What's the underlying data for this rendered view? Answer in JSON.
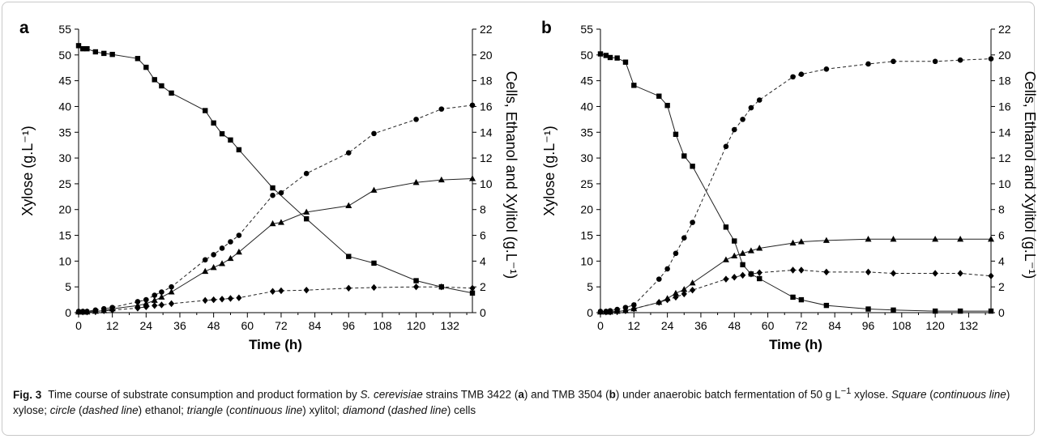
{
  "chart_data": [
    {
      "type": "line",
      "panel_label": "a",
      "xlabel": "Time (h)",
      "ylabel": "Xylose (g.L⁻¹)",
      "y2label": "Cells, Ethanol and Xylitol (g.L⁻¹)",
      "xlim": [
        0,
        140
      ],
      "xticks": [
        0,
        12,
        24,
        36,
        48,
        60,
        72,
        84,
        96,
        108,
        120,
        132
      ],
      "ylim": [
        0,
        55
      ],
      "yticks": [
        0,
        5,
        10,
        15,
        20,
        25,
        30,
        35,
        40,
        45,
        50,
        55
      ],
      "y2lim": [
        0,
        22
      ],
      "y2ticks": [
        0,
        2,
        4,
        6,
        8,
        10,
        12,
        14,
        16,
        18,
        20,
        22
      ],
      "grid": false,
      "legend": "none",
      "series": [
        {
          "marker": "square",
          "line": "solid",
          "axis": "left",
          "x": [
            0,
            1.5,
            3,
            6,
            9,
            12,
            21,
            24,
            27,
            29.5,
            33,
            45,
            48,
            51,
            54,
            57,
            69,
            81,
            96,
            105,
            120,
            129,
            140
          ],
          "y": [
            51.8,
            51.2,
            51.2,
            50.6,
            50.3,
            50.1,
            49.3,
            47.6,
            45.2,
            44.0,
            42.6,
            39.2,
            36.8,
            34.7,
            33.5,
            31.6,
            24.2,
            18.2,
            10.9,
            9.6,
            6.2,
            5.0,
            3.8
          ]
        },
        {
          "marker": "circle",
          "line": "dashed",
          "axis": "right",
          "x": [
            0,
            1.5,
            3,
            6,
            9,
            12,
            21,
            24,
            27,
            29.5,
            33,
            45,
            48,
            51,
            54,
            57,
            69,
            72,
            81,
            96,
            105,
            120,
            129,
            140
          ],
          "y": [
            0.1,
            0.1,
            0.1,
            0.2,
            0.3,
            0.4,
            0.85,
            1.0,
            1.35,
            1.6,
            2.0,
            4.1,
            4.5,
            5.0,
            5.5,
            6.0,
            9.1,
            9.3,
            10.8,
            12.4,
            13.9,
            15.0,
            15.8,
            16.1
          ]
        },
        {
          "marker": "triangle",
          "line": "solid",
          "axis": "right",
          "x": [
            0,
            1.5,
            3,
            6,
            9,
            12,
            21,
            24,
            27,
            29.5,
            33,
            45,
            48,
            51,
            54,
            57,
            69,
            72,
            81,
            96,
            105,
            120,
            129,
            140
          ],
          "y": [
            0.05,
            0.05,
            0.05,
            0.1,
            0.15,
            0.3,
            0.55,
            0.7,
            0.95,
            1.2,
            1.6,
            3.2,
            3.5,
            3.8,
            4.2,
            4.7,
            6.9,
            7.0,
            7.8,
            8.3,
            9.5,
            10.1,
            10.3,
            10.4
          ]
        },
        {
          "marker": "diamond",
          "line": "dashed",
          "axis": "right",
          "x": [
            0,
            1.5,
            3,
            6,
            9,
            12,
            21,
            24,
            27,
            29.5,
            33,
            45,
            48,
            51,
            54,
            57,
            69,
            72,
            81,
            96,
            105,
            120,
            129,
            140
          ],
          "y": [
            0.05,
            0.05,
            0.05,
            0.1,
            0.15,
            0.2,
            0.35,
            0.45,
            0.55,
            0.6,
            0.7,
            0.95,
            1.0,
            1.05,
            1.1,
            1.15,
            1.65,
            1.7,
            1.75,
            1.9,
            1.95,
            2.0,
            2.0,
            1.9
          ]
        }
      ]
    },
    {
      "type": "line",
      "panel_label": "b",
      "xlabel": "Time (h)",
      "ylabel": "Xylose (g.L⁻¹)",
      "y2label": "Cells, Ethanol and Xylitol (g.L⁻¹)",
      "xlim": [
        0,
        140
      ],
      "xticks": [
        0,
        12,
        24,
        36,
        48,
        60,
        72,
        84,
        96,
        108,
        120,
        132
      ],
      "ylim": [
        0,
        55
      ],
      "yticks": [
        0,
        5,
        10,
        15,
        20,
        25,
        30,
        35,
        40,
        45,
        50,
        55
      ],
      "y2lim": [
        0,
        22
      ],
      "y2ticks": [
        0,
        2,
        4,
        6,
        8,
        10,
        12,
        14,
        16,
        18,
        20,
        22
      ],
      "grid": false,
      "legend": "none",
      "series": [
        {
          "marker": "square",
          "line": "solid",
          "axis": "left",
          "x": [
            0,
            2,
            3.5,
            6,
            9,
            12,
            21,
            24,
            27,
            30,
            33,
            45,
            48,
            51,
            54,
            57,
            69,
            72,
            81,
            96,
            105,
            120,
            129,
            140
          ],
          "y": [
            50.2,
            49.9,
            49.5,
            49.4,
            48.6,
            44.1,
            42.0,
            40.2,
            34.6,
            30.4,
            28.4,
            16.6,
            13.9,
            9.3,
            7.5,
            6.6,
            3.0,
            2.5,
            1.4,
            0.7,
            0.5,
            0.3,
            0.3,
            0.3
          ]
        },
        {
          "marker": "circle",
          "line": "dashed",
          "axis": "right",
          "x": [
            0,
            2,
            3.5,
            6,
            9,
            12,
            21,
            24,
            27,
            30,
            33,
            45,
            48,
            51,
            54,
            57,
            69,
            72,
            81,
            96,
            105,
            120,
            129,
            140
          ],
          "y": [
            0.1,
            0.1,
            0.15,
            0.25,
            0.4,
            0.6,
            2.6,
            3.4,
            4.6,
            5.8,
            7.0,
            12.9,
            14.2,
            15.0,
            15.9,
            16.5,
            18.3,
            18.5,
            18.9,
            19.3,
            19.5,
            19.5,
            19.6,
            19.7
          ]
        },
        {
          "marker": "triangle",
          "line": "solid",
          "axis": "right",
          "x": [
            0,
            2,
            3.5,
            6,
            9,
            12,
            21,
            24,
            27,
            30,
            33,
            45,
            48,
            51,
            54,
            57,
            69,
            72,
            81,
            96,
            105,
            120,
            129,
            140
          ],
          "y": [
            0.05,
            0.05,
            0.05,
            0.1,
            0.15,
            0.3,
            0.8,
            1.1,
            1.5,
            1.8,
            2.3,
            4.1,
            4.4,
            4.6,
            4.8,
            5.0,
            5.4,
            5.5,
            5.6,
            5.7,
            5.7,
            5.7,
            5.7,
            5.7
          ]
        },
        {
          "marker": "diamond",
          "line": "dashed",
          "axis": "right",
          "x": [
            0,
            2,
            3.5,
            6,
            9,
            12,
            21,
            24,
            27,
            30,
            33,
            45,
            48,
            51,
            54,
            57,
            69,
            72,
            81,
            96,
            105,
            120,
            129,
            140
          ],
          "y": [
            0.05,
            0.05,
            0.05,
            0.1,
            0.15,
            0.3,
            0.8,
            1.0,
            1.2,
            1.45,
            1.75,
            2.6,
            2.75,
            2.9,
            3.0,
            3.1,
            3.3,
            3.3,
            3.15,
            3.15,
            3.05,
            3.05,
            3.05,
            2.85
          ]
        }
      ]
    }
  ],
  "caption": {
    "label": "Fig. 3",
    "text_before_species": "Time course of substrate consumption and product formation by ",
    "species": "S. cerevisiae",
    "text_strains_1": " strains TMB 3422 (",
    "panel_a": "a",
    "text_strains_2": ") and TMB 3504 (",
    "panel_b": "b",
    "text_strains_3": ") under anaerobic batch fermentation of 50 g L",
    "superscript": "−1",
    "text_after_superscript": " xylose. ",
    "legend_square": "Square",
    "legend_square_line": "continuous line",
    "legend_square_name": "xylose",
    "legend_circle": "circle",
    "legend_circle_line": "dashed line",
    "legend_circle_name": "ethanol",
    "legend_triangle": "triangle",
    "legend_triangle_line": "continuous line",
    "legend_triangle_name": "xylitol",
    "legend_diamond": "diamond",
    "legend_diamond_line": "dashed line",
    "legend_diamond_name": "cells"
  }
}
